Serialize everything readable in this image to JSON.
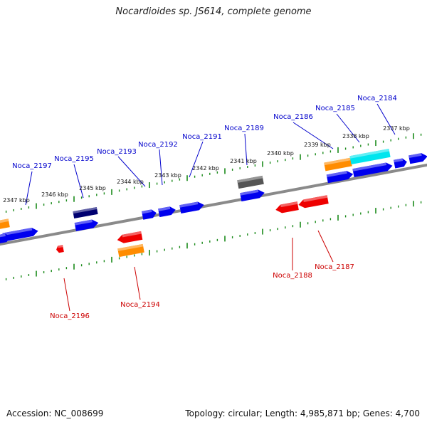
{
  "title": "Nocardioides sp. JS614, complete genome",
  "footer": {
    "accession": "Accession: NC_008699",
    "stats": "Topology: circular; Length: 4,985,871 bp; Genes: 4,700"
  },
  "colors": {
    "forward_label": "#0000cc",
    "reverse_label": "#cc0000",
    "tick": "#1a8a1a",
    "backbone": "#8a8a8a",
    "gene_blue": "#0000ee",
    "gene_red": "#ee0000",
    "gene_orange": "#ff8c00",
    "gene_cyan": "#00e5ee",
    "gene_gray": "#555555",
    "gene_navy": "#000070"
  },
  "kbp_labels": [
    "2337 kbp",
    "2338 kbp",
    "2339 kbp",
    "2340 kbp",
    "2341 kbp",
    "2342 kbp",
    "2343 kbp",
    "2344 kbp",
    "2345 kbp",
    "2346 kbp",
    "2347 kbp"
  ],
  "forward_labels": [
    "Noca_2184",
    "Noca_2185",
    "Noca_2186",
    "Noca_2189",
    "Noca_2191",
    "Noca_2192",
    "Noca_2193",
    "Noca_2195",
    "Noca_2197"
  ],
  "reverse_labels": [
    "Noca_2187",
    "Noca_2188",
    "Noca_2194",
    "Noca_2196"
  ]
}
